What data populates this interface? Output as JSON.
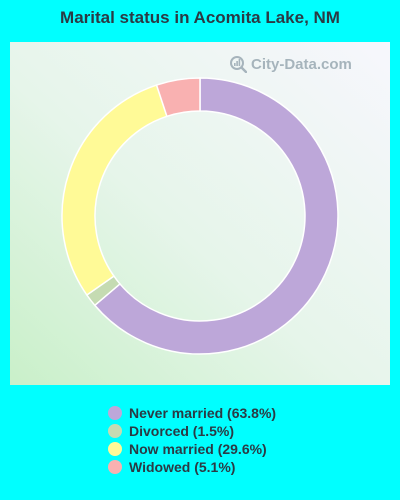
{
  "chart_data": {
    "type": "pie",
    "title": "Marital status in Acomita Lake, NM",
    "subtype": "donut",
    "slices": [
      {
        "label": "Never married (63.8%)",
        "name": "Never married",
        "value": 63.8,
        "color": "#BDA7D9"
      },
      {
        "label": "Divorced (1.5%)",
        "name": "Divorced",
        "value": 1.5,
        "color": "#C5DBB2"
      },
      {
        "label": "Now married (29.6%)",
        "name": "Now married",
        "value": 29.6,
        "color": "#FFFA97"
      },
      {
        "label": "Widowed (5.1%)",
        "name": "Widowed",
        "value": 5.1,
        "color": "#F9B1B1"
      }
    ],
    "legend_position": "bottom"
  },
  "watermark": {
    "text": "City-Data.com",
    "icon": "magnifier-icon"
  },
  "colors": {
    "background": "#00FFFF",
    "title_text": "#2b3a44"
  }
}
